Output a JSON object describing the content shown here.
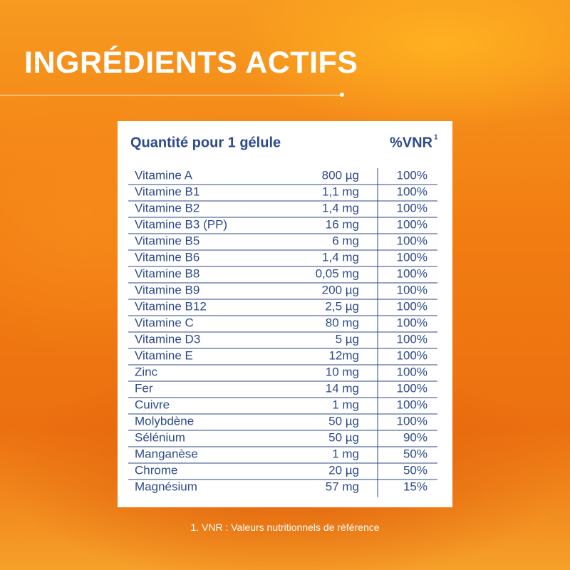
{
  "header": {
    "title": "INGRÉDIENTS ACTIFS"
  },
  "table": {
    "columns": {
      "quantity": "Quantité pour 1 gélule",
      "vnr": "%VNR",
      "vnr_note": "1"
    },
    "rows": [
      [
        "Vitamine A",
        "800 µg",
        "100%"
      ],
      [
        "Vitamine B1",
        "1,1 mg",
        "100%"
      ],
      [
        "Vitamine B2",
        "1,4 mg",
        "100%"
      ],
      [
        "Vitamine B3 (PP)",
        "16 mg",
        "100%"
      ],
      [
        "Vitamine B5",
        "6 mg",
        "100%"
      ],
      [
        "Vitamine B6",
        "1,4 mg",
        "100%"
      ],
      [
        "Vitamine B8",
        "0,05 mg",
        "100%"
      ],
      [
        "Vitamine B9",
        "200 µg",
        "100%"
      ],
      [
        "Vitamine B12",
        "2,5 µg",
        "100%"
      ],
      [
        "Vitamine C",
        "80 mg",
        "100%"
      ],
      [
        "Vitamine D3",
        "5 µg",
        "100%"
      ],
      [
        "Vitamine E",
        "12mg",
        "100%"
      ],
      [
        "Zinc",
        "10 mg",
        "100%"
      ],
      [
        "Fer",
        "14 mg",
        "100%"
      ],
      [
        "Cuivre",
        "1 mg",
        "100%"
      ],
      [
        "Molybdène",
        "50 µg",
        "100%"
      ],
      [
        "Sélénium",
        "50 µg",
        "90%"
      ],
      [
        "Manganèse",
        "1 mg",
        "50%"
      ],
      [
        "Chrome",
        "20 µg",
        "50%"
      ],
      [
        "Magnésium",
        "57 mg",
        "15%"
      ]
    ]
  },
  "footnote": "1. VNR : Valeurs nutritionnels de référence"
}
